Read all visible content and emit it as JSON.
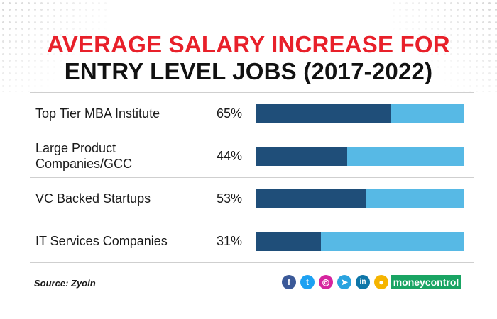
{
  "title": {
    "line1": "AVERAGE SALARY INCREASE FOR",
    "line2": "ENTRY LEVEL JOBS (2017-2022)"
  },
  "chart_data": {
    "type": "bar",
    "orientation": "horizontal",
    "categories": [
      "Top Tier MBA Institute",
      "Large Product Companies/GCC",
      "VC Backed Startups",
      "IT Services Companies"
    ],
    "category_lines": [
      [
        "Top Tier MBA Institute"
      ],
      [
        "Large Product",
        "Companies/GCC"
      ],
      [
        "VC Backed Startups"
      ],
      [
        "IT Services Companies"
      ]
    ],
    "values": [
      65,
      44,
      53,
      31
    ],
    "value_labels": [
      "65%",
      "44%",
      "53%",
      "31%"
    ],
    "xlim": [
      0,
      100
    ],
    "grid": false,
    "colors": {
      "filled": "#1f4e79",
      "remainder": "#57b9e5"
    }
  },
  "footer": {
    "source": "Source: Zyoin",
    "brand": "moneycontrol",
    "brand_color": "#19a463",
    "social_icons": [
      {
        "name": "facebook-icon",
        "glyph": "f",
        "color": "#3b5998"
      },
      {
        "name": "twitter-icon",
        "glyph": "t",
        "color": "#1da1f2"
      },
      {
        "name": "instagram-icon",
        "glyph": "◎",
        "color": "#d6249f"
      },
      {
        "name": "telegram-icon",
        "glyph": "➤",
        "color": "#2aa3df"
      },
      {
        "name": "linkedin-icon",
        "glyph": "in",
        "color": "#0e76a8"
      },
      {
        "name": "koo-icon",
        "glyph": "●",
        "color": "#f5b400"
      }
    ]
  }
}
